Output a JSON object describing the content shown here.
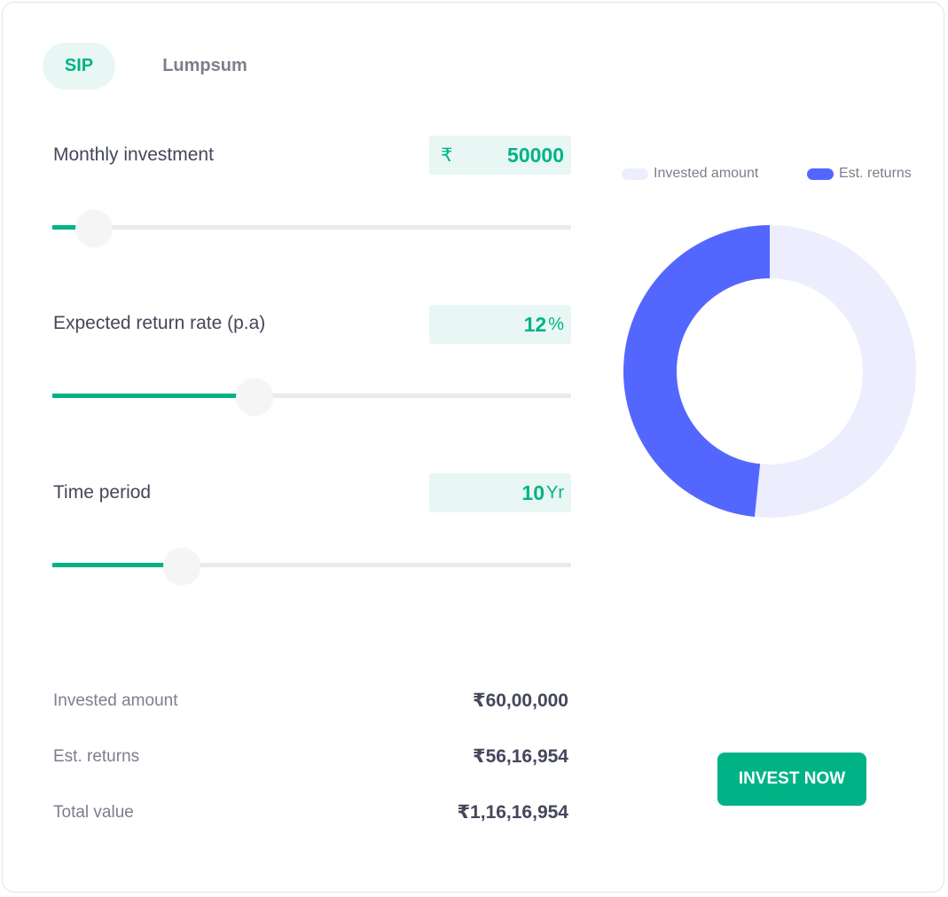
{
  "tabs": [
    {
      "label": "SIP",
      "active": true
    },
    {
      "label": "Lumpsum",
      "active": false
    }
  ],
  "inputs": {
    "monthly_investment": {
      "label": "Monthly investment",
      "prefix": "₹",
      "value": "50000",
      "slider_fraction": 0.08
    },
    "return_rate": {
      "label": "Expected return rate (p.a)",
      "value": "12",
      "unit": "%",
      "slider_fraction": 0.39
    },
    "time_period": {
      "label": "Time period",
      "value": "10",
      "unit": "Yr",
      "slider_fraction": 0.25
    }
  },
  "legend": {
    "invested": "Invested amount",
    "returns": "Est. returns"
  },
  "colors": {
    "accent": "#00b386",
    "invested": "#eceefd",
    "returns": "#5367ff"
  },
  "chart_data": {
    "type": "pie",
    "donut": true,
    "categories": [
      "Invested amount",
      "Est. returns"
    ],
    "values": [
      6000000,
      5616954
    ]
  },
  "summary": {
    "invested_label": "Invested amount",
    "invested_value": "₹60,00,000",
    "returns_label": "Est. returns",
    "returns_value": "₹56,16,954",
    "total_label": "Total value",
    "total_value": "₹1,16,16,954"
  },
  "cta": {
    "label": "INVEST NOW"
  }
}
